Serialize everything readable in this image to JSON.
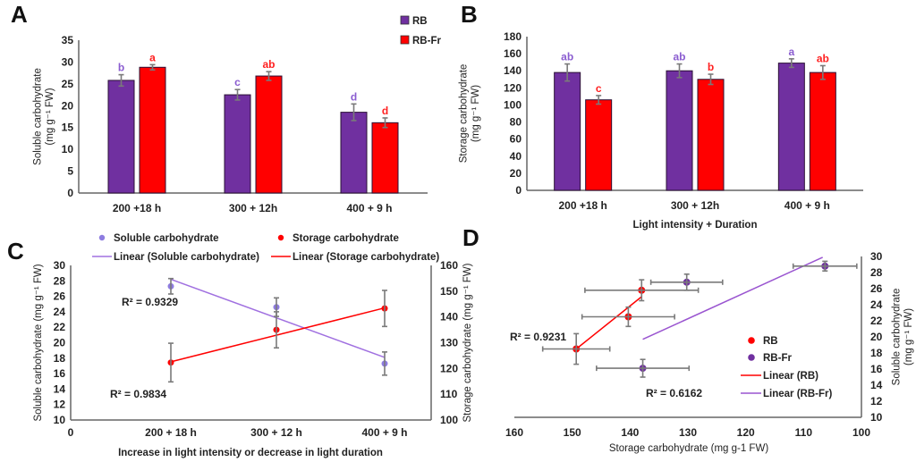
{
  "colors": {
    "rb": "#7030A0",
    "rb_fr": "#FF0000",
    "soluble_point": "#8E7CE0",
    "soluble_line": "#A070E0",
    "storage": "#FF0000",
    "rb_fr_line": "#9A55D0",
    "error": "#7a7a7a",
    "axis": "#666666",
    "sig_rb": "#8a5cd0",
    "sig_fr": "#ff2020"
  },
  "chart_data": [
    {
      "id": "A",
      "panel_label": "A",
      "type": "bar",
      "title": "",
      "xlabel": "",
      "ylabel": [
        "Soluble carbohydrate",
        "(mg g⁻¹ FW)"
      ],
      "ylim": [
        0,
        35
      ],
      "yticks": [
        0,
        5,
        10,
        15,
        20,
        25,
        30,
        35
      ],
      "categories": [
        "200 +18 h",
        "300 + 12h",
        "400 + 9 h"
      ],
      "legend_position": "top-right",
      "series": [
        {
          "name": "RB",
          "values": [
            25.8,
            22.5,
            18.5
          ],
          "errors": [
            1.3,
            1.2,
            1.9
          ],
          "letters": [
            "b",
            "c",
            "d"
          ]
        },
        {
          "name": "RB-Fr",
          "values": [
            28.8,
            26.8,
            16.1
          ],
          "errors": [
            0.6,
            1.0,
            1.1
          ],
          "letters": [
            "a",
            "ab",
            "d"
          ]
        }
      ]
    },
    {
      "id": "B",
      "panel_label": "B",
      "type": "bar",
      "title": "",
      "xlabel": "Light intensity + Duration",
      "ylabel": [
        "Storage carbohydrate",
        "(mg g⁻¹ FW)"
      ],
      "ylim": [
        0,
        180
      ],
      "yticks": [
        0,
        20,
        40,
        60,
        80,
        100,
        120,
        140,
        160,
        180
      ],
      "categories": [
        "200 +18 h",
        "300 + 12h",
        "400 + 9 h"
      ],
      "series": [
        {
          "name": "RB",
          "values": [
            138,
            140,
            149
          ],
          "errors": [
            10,
            8,
            5
          ],
          "letters": [
            "ab",
            "ab",
            "a"
          ]
        },
        {
          "name": "RB-Fr",
          "values": [
            106,
            130,
            138
          ],
          "errors": [
            5,
            6,
            8
          ],
          "letters": [
            "c",
            "b",
            "ab"
          ]
        }
      ]
    },
    {
      "id": "C",
      "panel_label": "C",
      "type": "line",
      "title": "",
      "xlabel": "Increase in light intensity or decrease in light duration",
      "ylabel": "Soluble carbohydrate (mg g⁻¹ FW)",
      "y2label": "Storage carbohydrate (mg g⁻¹ FW)",
      "x_origin_label": "0",
      "categories": [
        "200 + 18 h",
        "300 + 12 h",
        "400 + 9 h"
      ],
      "ylim": [
        10,
        30
      ],
      "yticks": [
        10,
        12,
        14,
        16,
        18,
        20,
        22,
        24,
        26,
        28,
        30
      ],
      "y2lim": [
        100,
        160
      ],
      "y2ticks": [
        100,
        110,
        120,
        130,
        140,
        150,
        160
      ],
      "legend_position": "top",
      "legend": [
        "Soluble carbohydrate",
        "Storage carbohydrate",
        "Linear (Soluble carbohydrate)",
        "Linear (Storage carbohydrate)"
      ],
      "series": [
        {
          "name": "Soluble carbohydrate",
          "axis": "left",
          "values": [
            27.3,
            24.6,
            17.3
          ],
          "errors": [
            1.0,
            1.2,
            1.5
          ],
          "trend": [
            28.2,
            18.1
          ],
          "r2": "R² = 0.9329"
        },
        {
          "name": "Storage carbohydrate",
          "axis": "right",
          "values": [
            122.3,
            135.0,
            143.3
          ],
          "errors": [
            7.5,
            7.0,
            7.0
          ],
          "trend": [
            122.6,
            143.5
          ],
          "r2": "R² = 0.9834"
        }
      ]
    },
    {
      "id": "D",
      "panel_label": "D",
      "type": "scatter",
      "title": "",
      "xlabel": "Storage carbohydrate (mg g-1 FW)",
      "ylabel": [
        "Soluble carbohydrate",
        "(mg g⁻¹ FW)"
      ],
      "xlim": [
        160,
        100
      ],
      "xticks": [
        160,
        150,
        140,
        130,
        120,
        110,
        100
      ],
      "ylim": [
        10,
        30
      ],
      "yticks": [
        10,
        12,
        14,
        16,
        18,
        20,
        22,
        24,
        26,
        28,
        30
      ],
      "legend_position": "center-right",
      "legend": [
        "RB",
        "RB-Fr",
        "Linear (RB)",
        "Linear (RB-Fr)"
      ],
      "series": [
        {
          "name": "RB",
          "points": [
            [
              149.3,
              18.5,
              5.8,
              1.9
            ],
            [
              138.0,
              25.8,
              9.8,
              1.3
            ],
            [
              140.3,
              22.5,
              8.0,
              1.2
            ]
          ],
          "trend": [
            [
              149.3,
              18.5
            ],
            [
              138.0,
              25.0
            ]
          ],
          "r2": "R² = 0.9231"
        },
        {
          "name": "RB-Fr",
          "points": [
            [
              106.3,
              28.8,
              5.5,
              0.6
            ],
            [
              130.2,
              26.8,
              6.2,
              1.0
            ],
            [
              137.8,
              16.1,
              8.0,
              1.1
            ]
          ],
          "trend": [
            [
              137.8,
              19.7
            ],
            [
              106.7,
              29.9
            ]
          ],
          "r2": "R² = 0.6162"
        }
      ]
    }
  ]
}
